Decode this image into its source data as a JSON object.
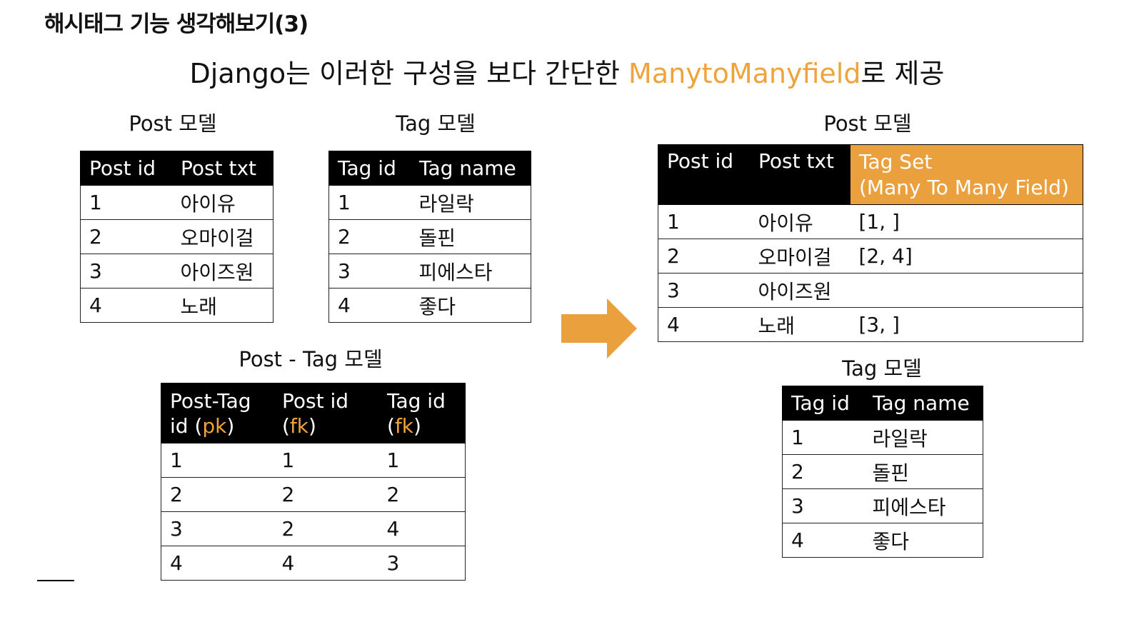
{
  "slide_title": "해시태그 기능 생각해보기(3)",
  "headline": {
    "prefix": "Django는 이러한 구성을 보다 간단한 ",
    "highlight": "ManytoManyfield",
    "suffix": "로 제공"
  },
  "post_model": {
    "label": "Post 모델",
    "headers": [
      "Post id",
      "Post txt"
    ],
    "rows": [
      [
        "1",
        "아이유"
      ],
      [
        "2",
        "오마이걸"
      ],
      [
        "3",
        "아이즈원"
      ],
      [
        "4",
        "노래"
      ]
    ]
  },
  "tag_model": {
    "label": "Tag 모델",
    "headers": [
      "Tag id",
      "Tag name"
    ],
    "rows": [
      [
        "1",
        "라일락"
      ],
      [
        "2",
        "돌핀"
      ],
      [
        "3",
        "피에스타"
      ],
      [
        "4",
        "좋다"
      ]
    ]
  },
  "post_tag_model": {
    "label": "Post - Tag 모델",
    "headers": [
      {
        "line1": "Post-Tag",
        "line2_a": "id (",
        "line2_b": "pk",
        "line2_c": ")"
      },
      {
        "line1": "Post id",
        "line2_a": "(",
        "line2_b": "fk",
        "line2_c": ")"
      },
      {
        "line1": "Tag id",
        "line2_a": "(",
        "line2_b": "fk",
        "line2_c": ")"
      }
    ],
    "rows": [
      [
        "1",
        "1",
        "1"
      ],
      [
        "2",
        "2",
        "2"
      ],
      [
        "3",
        "2",
        "4"
      ],
      [
        "4",
        "4",
        "3"
      ]
    ]
  },
  "post_model_m2m": {
    "label": "Post 모델",
    "headers": [
      "Post id",
      "Post txt"
    ],
    "tagset_header": {
      "line1": "Tag Set",
      "line2": "(Many To Many Field)"
    },
    "rows": [
      [
        "1",
        "아이유",
        "[1, ]"
      ],
      [
        "2",
        "오마이걸",
        "[2, 4]"
      ],
      [
        "3",
        "아이즈원",
        ""
      ],
      [
        "4",
        "노래",
        "[3, ]"
      ]
    ]
  },
  "tag_model_m2m": {
    "label": "Tag 모델",
    "headers": [
      "Tag id",
      "Tag name"
    ],
    "rows": [
      [
        "1",
        "라일락"
      ],
      [
        "2",
        "돌핀"
      ],
      [
        "3",
        "피에스타"
      ],
      [
        "4",
        "좋다"
      ]
    ]
  },
  "icons": {
    "arrow": "right-arrow-icon"
  },
  "colors": {
    "accent": "#F0A33A",
    "header_bg": "#000000",
    "tagset_header_bg": "#E9A03D"
  }
}
